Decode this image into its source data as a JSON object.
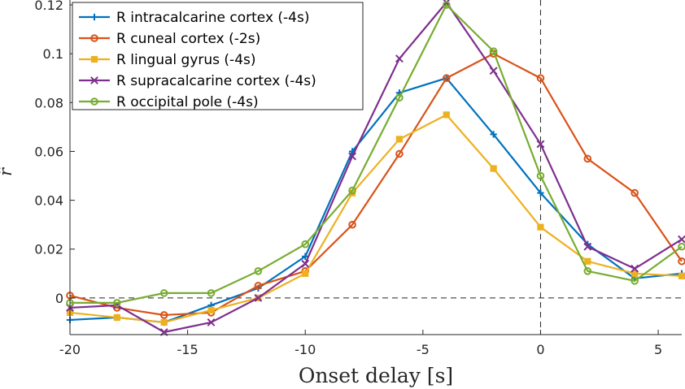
{
  "chart_data": {
    "type": "line",
    "title": "",
    "xlabel": "Onset delay [s]",
    "ylabel": "r̂",
    "xlim": [
      -20,
      6
    ],
    "ylim": [
      -0.015,
      0.122
    ],
    "x_ticks": [
      -20,
      -15,
      -10,
      -5,
      0,
      5
    ],
    "y_ticks": [
      0,
      0.02,
      0.04,
      0.06,
      0.08,
      0.1,
      0.12
    ],
    "x_tick_labels": [
      "-20",
      "-15",
      "-10",
      "-5",
      "0",
      "5"
    ],
    "y_tick_labels": [
      "0",
      "0.02",
      "0.04",
      "0.06",
      "0.08",
      "0.1",
      "0.12"
    ],
    "grid": false,
    "legend_position": "top-left",
    "reference_lines": {
      "horizontal_y": 0,
      "vertical_x": 0,
      "style": "dashed"
    },
    "x": [
      -20,
      -18,
      -16,
      -14,
      -12,
      -10,
      -8,
      -6,
      -4,
      -2,
      0,
      2,
      4,
      6
    ],
    "series": [
      {
        "name": "R intracalcarine cortex (-4s)",
        "color": "#0072BD",
        "marker": "plus",
        "values": [
          -0.009,
          -0.008,
          -0.01,
          -0.003,
          0.004,
          0.017,
          0.06,
          0.084,
          0.09,
          0.067,
          0.043,
          0.022,
          0.008,
          0.01
        ]
      },
      {
        "name": "R cuneal cortex (-2s)",
        "color": "#D95319",
        "marker": "circle",
        "values": [
          0.001,
          -0.004,
          -0.007,
          -0.006,
          0.005,
          0.011,
          0.03,
          0.059,
          0.09,
          0.1,
          0.09,
          0.057,
          0.043,
          0.015
        ]
      },
      {
        "name": "R lingual gyrus (-4s)",
        "color": "#EDB120",
        "marker": "square",
        "values": [
          -0.006,
          -0.008,
          -0.01,
          -0.005,
          0.0,
          0.01,
          0.043,
          0.065,
          0.075,
          0.053,
          0.029,
          0.015,
          0.01,
          0.009
        ]
      },
      {
        "name": "R supracalcarine cortex (-4s)",
        "color": "#7E2F8E",
        "marker": "x",
        "values": [
          -0.004,
          -0.003,
          -0.014,
          -0.01,
          -0.0,
          0.014,
          0.058,
          0.098,
          0.121,
          0.093,
          0.063,
          0.021,
          0.012,
          0.024
        ]
      },
      {
        "name": "R occipital pole (-4s)",
        "color": "#77AC30",
        "marker": "circle",
        "values": [
          -0.002,
          -0.002,
          0.002,
          0.002,
          0.011,
          0.022,
          0.044,
          0.082,
          0.12,
          0.101,
          0.05,
          0.011,
          0.007,
          0.021
        ]
      }
    ]
  }
}
